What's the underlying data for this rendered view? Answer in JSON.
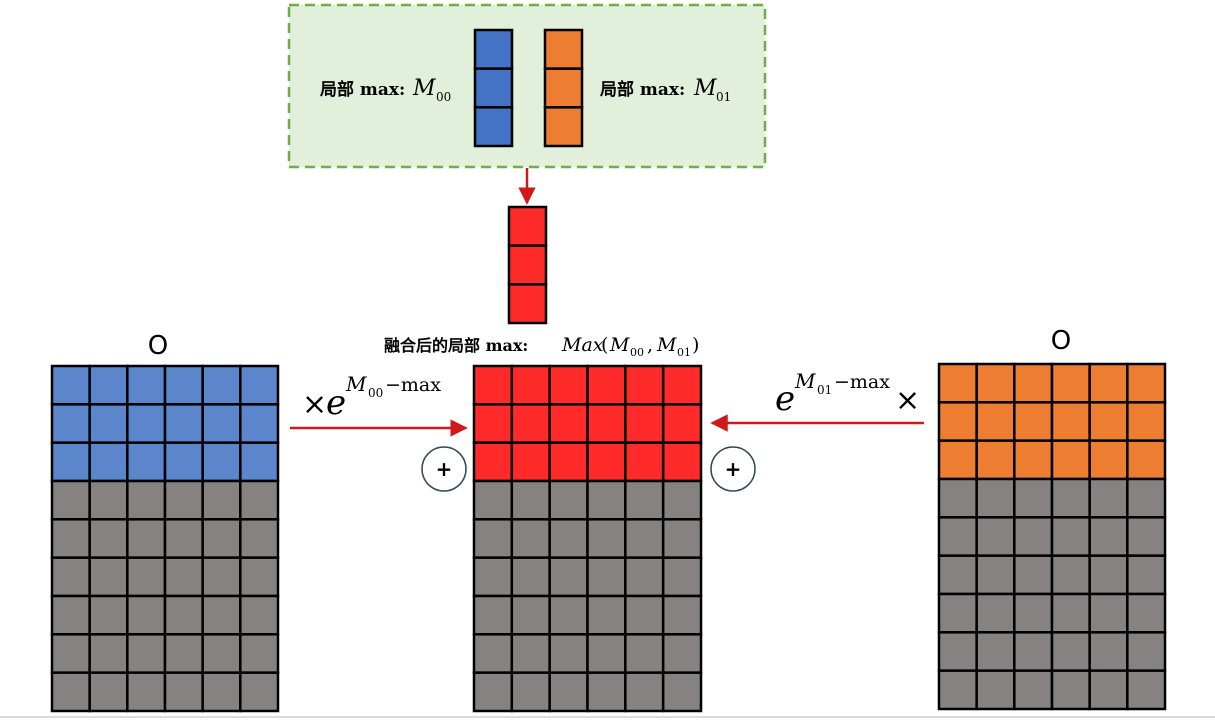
{
  "legend_box": {
    "left_label": "局部 max:",
    "left_var": "M",
    "left_sub": "00",
    "right_label": "局部 max:",
    "right_var": "M",
    "right_sub": "01"
  },
  "merged": {
    "label": "融合后的局部 max:",
    "expr_func": "Max",
    "expr_open": "(",
    "expr_a": "M",
    "expr_a_sub": "00",
    "expr_sep": ",",
    "expr_b": "M",
    "expr_b_sub": "01",
    "expr_close": ")"
  },
  "left_matrix": {
    "title": "O",
    "rows": 9,
    "cols": 6,
    "highlight_rows": 3
  },
  "middle_matrix": {
    "rows": 9,
    "cols": 6,
    "highlight_rows": 3
  },
  "right_matrix": {
    "title": "O",
    "rows": 9,
    "cols": 6,
    "highlight_rows": 3
  },
  "left_factor": {
    "times": "×",
    "base": "e",
    "exp_var": "M",
    "exp_sub": "00",
    "exp_rest": "−max"
  },
  "right_factor": {
    "base": "e",
    "exp_var": "M",
    "exp_sub": "01",
    "exp_rest": "−max",
    "times": "×"
  },
  "plus_symbol": "+",
  "colors": {
    "blue": "#4472c4",
    "blue_light": "#5b86cc",
    "orange": "#ed7d31",
    "red": "#ff2a2a",
    "gray": "#868282",
    "arrow": "#d0191b",
    "dashed_border": "#70ad47",
    "box_fill": "#e2efda",
    "plus_green": "#70ad47",
    "circle_border": "#2f4a5a"
  }
}
